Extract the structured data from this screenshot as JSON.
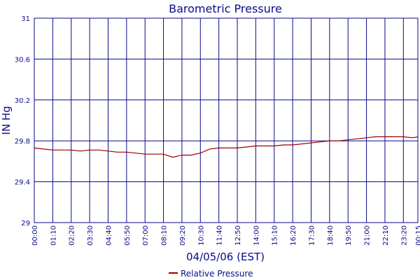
{
  "chart_data": {
    "type": "line",
    "title": "Barometric Pressure",
    "xlabel": "04/05/06 (EST)",
    "ylabel": "IN Hg",
    "ylim": [
      29,
      31
    ],
    "y_ticks": [
      "29",
      "29.4",
      "29.8",
      "30.2",
      "30.6",
      "31"
    ],
    "x_ticks": [
      "00:00",
      "01:10",
      "02:20",
      "03:30",
      "04:40",
      "05:50",
      "07:00",
      "08:10",
      "09:20",
      "10:30",
      "11:40",
      "12:50",
      "14:00",
      "15:10",
      "16:20",
      "17:30",
      "18:40",
      "19:50",
      "21:00",
      "22:10",
      "23:20",
      "00:15"
    ],
    "grid": true,
    "legend_position": "bottom-center",
    "series": [
      {
        "name": "Relative Pressure",
        "color": "#990000",
        "x": [
          "00:00",
          "00:35",
          "01:10",
          "01:45",
          "02:20",
          "02:55",
          "03:30",
          "04:05",
          "04:40",
          "05:15",
          "05:50",
          "06:25",
          "07:00",
          "07:35",
          "08:10",
          "08:45",
          "09:20",
          "09:55",
          "10:30",
          "11:05",
          "11:40",
          "12:15",
          "12:50",
          "13:25",
          "14:00",
          "14:35",
          "15:10",
          "15:45",
          "16:20",
          "16:55",
          "17:30",
          "18:05",
          "18:40",
          "19:15",
          "19:50",
          "20:25",
          "21:00",
          "21:35",
          "22:10",
          "22:45",
          "23:20",
          "23:55",
          "00:15"
        ],
        "values": [
          29.73,
          29.72,
          29.71,
          29.71,
          29.71,
          29.7,
          29.71,
          29.71,
          29.7,
          29.69,
          29.69,
          29.68,
          29.67,
          29.67,
          29.67,
          29.64,
          29.66,
          29.66,
          29.68,
          29.72,
          29.73,
          29.73,
          29.73,
          29.74,
          29.75,
          29.75,
          29.75,
          29.76,
          29.76,
          29.77,
          29.78,
          29.79,
          29.8,
          29.8,
          29.81,
          29.82,
          29.83,
          29.84,
          29.84,
          29.84,
          29.84,
          29.83,
          29.84
        ]
      }
    ]
  },
  "colors": {
    "grid": "#0a0a8a",
    "text": "#0a0a8a",
    "series": "#990000"
  }
}
